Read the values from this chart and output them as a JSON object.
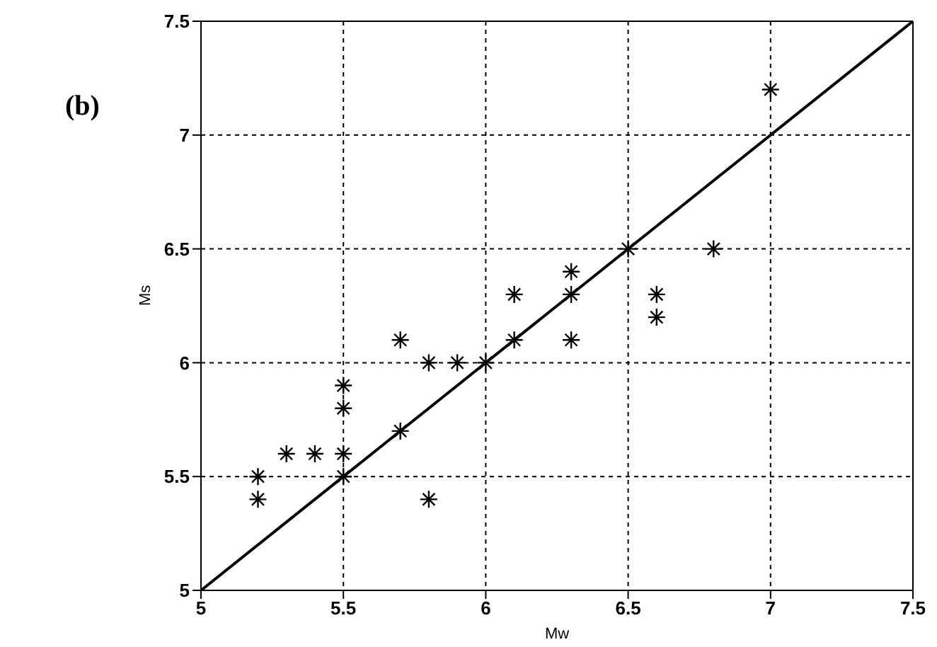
{
  "chart_data": {
    "type": "scatter",
    "xlabel": "Mw",
    "ylabel": "Ms",
    "annotations": [
      "(b)"
    ],
    "xlim": [
      5,
      7.5
    ],
    "ylim": [
      5,
      7.5
    ],
    "xticks": [
      5,
      5.5,
      6,
      6.5,
      7,
      7.5
    ],
    "yticks": [
      5,
      5.5,
      6,
      6.5,
      7,
      7.5
    ],
    "grid": true,
    "marker": "cross",
    "series": [
      {
        "color": "#000000",
        "x": [
          5.2,
          5.2,
          5.3,
          5.4,
          5.5,
          5.5,
          5.5,
          5.5,
          5.7,
          5.7,
          5.8,
          5.8,
          5.9,
          6.0,
          6.1,
          6.1,
          6.3,
          6.3,
          6.3,
          6.5,
          6.6,
          6.6,
          6.8,
          7.0
        ],
        "values": [
          5.5,
          5.4,
          5.6,
          5.6,
          5.6,
          5.5,
          5.8,
          5.9,
          5.7,
          6.1,
          6.0,
          5.4,
          6.0,
          6.0,
          6.1,
          6.3,
          6.3,
          6.4,
          6.1,
          6.5,
          6.3,
          6.2,
          6.5,
          7.2
        ]
      },
      {
        "type": "line",
        "color": "#000000",
        "line_style": "solid",
        "marker": "none",
        "x": [
          5,
          7.5
        ],
        "values": [
          5,
          7.5
        ]
      }
    ]
  }
}
